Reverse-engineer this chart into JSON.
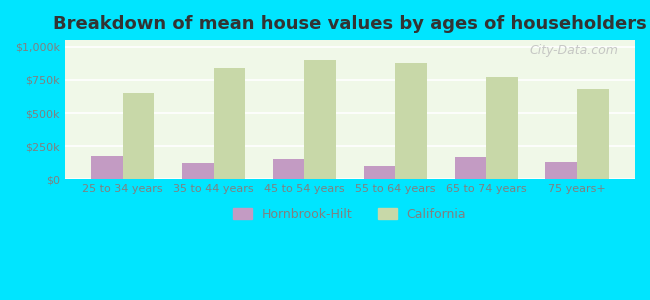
{
  "categories": [
    "25 to 34 years",
    "35 to 44 years",
    "45 to 54 years",
    "55 to 64 years",
    "65 to 74 years",
    "75 years+"
  ],
  "hornbrook_values": [
    175000,
    125000,
    155000,
    100000,
    170000,
    130000
  ],
  "california_values": [
    650000,
    840000,
    900000,
    880000,
    775000,
    685000
  ],
  "hornbrook_color": "#c39bc3",
  "california_color": "#c8d8a8",
  "background_outer": "#00e5ff",
  "background_inner": "#f0f8e8",
  "title": "Breakdown of mean house values by ages of householders",
  "title_fontsize": 13,
  "ylabel_ticks": [
    "$0",
    "$250k",
    "$500k",
    "$750k",
    "$1,000k"
  ],
  "ytick_values": [
    0,
    250000,
    500000,
    750000,
    1000000
  ],
  "ylim": [
    0,
    1050000
  ],
  "legend_labels": [
    "Hornbrook-Hilt",
    "California"
  ],
  "bar_width": 0.35,
  "grid_color": "#ffffff",
  "axis_label_color": "#808080",
  "watermark": "City-Data.com"
}
